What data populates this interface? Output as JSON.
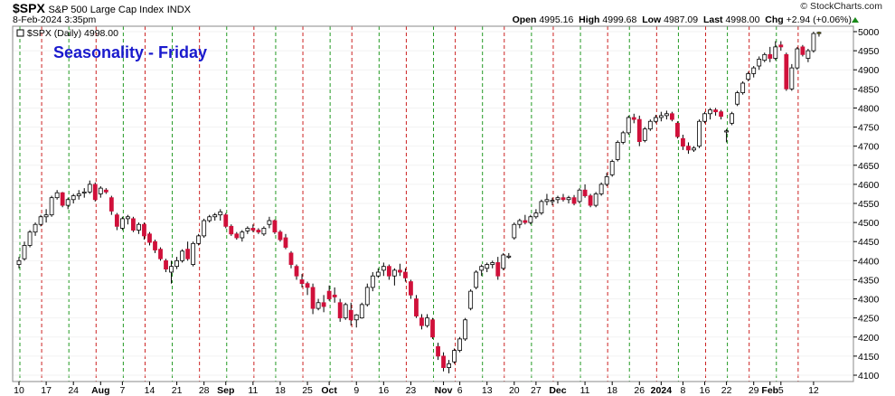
{
  "header": {
    "symbol": "$SPX",
    "name": "S&P 500 Large Cap Index",
    "exchange": "INDX",
    "timestamp": "8-Feb-2024 3:35pm",
    "brand": "© StockCharts.com",
    "open_label": "Open",
    "open": "4995.16",
    "high_label": "High",
    "high": "4999.68",
    "low_label": "Low",
    "low": "4987.09",
    "last_label": "Last",
    "last": "4998.00",
    "chg_label": "Chg",
    "chg": "+2.94 (+0.06%)"
  },
  "legend_text": "$SPX (Daily) 4998.00",
  "chart_title": "Seasonality - Friday",
  "colors": {
    "up": "#ffffff",
    "down": "#d0103a",
    "wick": "#000000",
    "vline_red": "#cc2222",
    "vline_green": "#229922",
    "title": "#1a1acd",
    "last_marker": "#ffff00"
  },
  "chart_data": {
    "type": "candlestick",
    "title": "Seasonality - Friday",
    "y_ticks": [
      4100,
      4150,
      4200,
      4250,
      4300,
      4350,
      4400,
      4450,
      4500,
      4550,
      4600,
      4650,
      4700,
      4750,
      4800,
      4850,
      4900,
      4950,
      5000
    ],
    "ylim": [
      4090,
      5005
    ],
    "x_labels": [
      {
        "i": 0,
        "text": "10"
      },
      {
        "i": 5,
        "text": "17"
      },
      {
        "i": 10,
        "text": "24"
      },
      {
        "i": 15,
        "text": "Aug",
        "bold": true
      },
      {
        "i": 19,
        "text": "7"
      },
      {
        "i": 24,
        "text": "14"
      },
      {
        "i": 29,
        "text": "21"
      },
      {
        "i": 34,
        "text": "28"
      },
      {
        "i": 38,
        "text": "Sep",
        "bold": true
      },
      {
        "i": 43,
        "text": "11"
      },
      {
        "i": 48,
        "text": "18"
      },
      {
        "i": 53,
        "text": "25"
      },
      {
        "i": 57,
        "text": "Oct",
        "bold": true
      },
      {
        "i": 62,
        "text": "9"
      },
      {
        "i": 67,
        "text": "16"
      },
      {
        "i": 72,
        "text": "23"
      },
      {
        "i": 78,
        "text": "Nov",
        "bold": true
      },
      {
        "i": 81,
        "text": "6"
      },
      {
        "i": 86,
        "text": "13"
      },
      {
        "i": 91,
        "text": "20"
      },
      {
        "i": 95,
        "text": "27"
      },
      {
        "i": 99,
        "text": "Dec",
        "bold": true
      },
      {
        "i": 104,
        "text": "11"
      },
      {
        "i": 109,
        "text": "18"
      },
      {
        "i": 114,
        "text": "26"
      },
      {
        "i": 118,
        "text": "2024",
        "bold": true
      },
      {
        "i": 122,
        "text": "8"
      },
      {
        "i": 126,
        "text": "16"
      },
      {
        "i": 130,
        "text": "22"
      },
      {
        "i": 135,
        "text": "29"
      },
      {
        "i": 138,
        "text": "Feb",
        "bold": true
      },
      {
        "i": 140,
        "text": "5"
      },
      {
        "i": 146,
        "text": "12"
      }
    ],
    "x_slots": 147,
    "vlines": [
      {
        "i": 0,
        "c": "g"
      },
      {
        "i": 4,
        "c": "r"
      },
      {
        "i": 9,
        "c": "g"
      },
      {
        "i": 14,
        "c": "r"
      },
      {
        "i": 19,
        "c": "g"
      },
      {
        "i": 23,
        "c": "r"
      },
      {
        "i": 28,
        "c": "g"
      },
      {
        "i": 33,
        "c": "r"
      },
      {
        "i": 38,
        "c": "g"
      },
      {
        "i": 43,
        "c": "r"
      },
      {
        "i": 47,
        "c": "g"
      },
      {
        "i": 52,
        "c": "r"
      },
      {
        "i": 57,
        "c": "g"
      },
      {
        "i": 61,
        "c": "r"
      },
      {
        "i": 66,
        "c": "g"
      },
      {
        "i": 71,
        "c": "r"
      },
      {
        "i": 76,
        "c": "g"
      },
      {
        "i": 80,
        "c": "r"
      },
      {
        "i": 85,
        "c": "g"
      },
      {
        "i": 89,
        "c": "r"
      },
      {
        "i": 94,
        "c": "g"
      },
      {
        "i": 98,
        "c": "r"
      },
      {
        "i": 103,
        "c": "g"
      },
      {
        "i": 108,
        "c": "r"
      },
      {
        "i": 112,
        "c": "g"
      },
      {
        "i": 117,
        "c": "r"
      },
      {
        "i": 121,
        "c": "g"
      },
      {
        "i": 126,
        "c": "r"
      },
      {
        "i": 130,
        "c": "g"
      },
      {
        "i": 134,
        "c": "r"
      },
      {
        "i": 139,
        "c": "g"
      },
      {
        "i": 143,
        "c": "r"
      }
    ],
    "candles": [
      [
        4390,
        4410,
        4380,
        4400
      ],
      [
        4405,
        4450,
        4400,
        4440
      ],
      [
        4440,
        4480,
        4435,
        4475
      ],
      [
        4475,
        4500,
        4465,
        4495
      ],
      [
        4495,
        4520,
        4490,
        4515
      ],
      [
        4515,
        4535,
        4500,
        4520
      ],
      [
        4520,
        4570,
        4515,
        4565
      ],
      [
        4565,
        4585,
        4560,
        4578
      ],
      [
        4578,
        4580,
        4540,
        4545
      ],
      [
        4545,
        4565,
        4535,
        4560
      ],
      [
        4560,
        4575,
        4550,
        4570
      ],
      [
        4570,
        4585,
        4560,
        4575
      ],
      [
        4578,
        4590,
        4565,
        4580
      ],
      [
        4580,
        4610,
        4575,
        4600
      ],
      [
        4600,
        4605,
        4555,
        4560
      ],
      [
        4575,
        4595,
        4565,
        4590
      ],
      [
        4585,
        4590,
        4575,
        4580
      ],
      [
        4565,
        4570,
        4520,
        4530
      ],
      [
        4520,
        4525,
        4480,
        4490
      ],
      [
        4485,
        4515,
        4480,
        4510
      ],
      [
        4510,
        4520,
        4495,
        4515
      ],
      [
        4510,
        4515,
        4475,
        4480
      ],
      [
        4480,
        4500,
        4470,
        4495
      ],
      [
        4495,
        4500,
        4455,
        4465
      ],
      [
        4470,
        4475,
        4440,
        4448
      ],
      [
        4450,
        4455,
        4420,
        4428
      ],
      [
        4430,
        4435,
        4400,
        4405
      ],
      [
        4400,
        4405,
        4370,
        4378
      ],
      [
        4370,
        4400,
        4340,
        4385
      ],
      [
        4385,
        4410,
        4378,
        4400
      ],
      [
        4400,
        4430,
        4395,
        4425
      ],
      [
        4430,
        4450,
        4400,
        4405
      ],
      [
        4390,
        4450,
        4385,
        4445
      ],
      [
        4445,
        4470,
        4440,
        4465
      ],
      [
        4465,
        4510,
        4460,
        4505
      ],
      [
        4505,
        4520,
        4500,
        4515
      ],
      [
        4515,
        4525,
        4505,
        4520
      ],
      [
        4520,
        4535,
        4505,
        4528
      ],
      [
        4520,
        4525,
        4485,
        4490
      ],
      [
        4490,
        4495,
        4465,
        4470
      ],
      [
        4470,
        4475,
        4455,
        4460
      ],
      [
        4460,
        4480,
        4450,
        4475
      ],
      [
        4478,
        4490,
        4470,
        4485
      ],
      [
        4485,
        4495,
        4475,
        4480
      ],
      [
        4480,
        4485,
        4470,
        4475
      ],
      [
        4470,
        4490,
        4465,
        4485
      ],
      [
        4495,
        4515,
        4485,
        4505
      ],
      [
        4505,
        4508,
        4470,
        4475
      ],
      [
        4475,
        4480,
        4450,
        4455
      ],
      [
        4460,
        4470,
        4430,
        4435
      ],
      [
        4420,
        4425,
        4380,
        4390
      ],
      [
        4385,
        4390,
        4350,
        4360
      ],
      [
        4350,
        4365,
        4330,
        4340
      ],
      [
        4340,
        4345,
        4310,
        4330
      ],
      [
        4330,
        4340,
        4260,
        4275
      ],
      [
        4275,
        4300,
        4270,
        4290
      ],
      [
        4290,
        4310,
        4265,
        4280
      ],
      [
        4320,
        4335,
        4295,
        4300
      ],
      [
        4310,
        4330,
        4290,
        4305
      ],
      [
        4290,
        4300,
        4240,
        4250
      ],
      [
        4250,
        4290,
        4245,
        4285
      ],
      [
        4270,
        4290,
        4230,
        4245
      ],
      [
        4245,
        4260,
        4225,
        4258
      ],
      [
        4250,
        4290,
        4248,
        4285
      ],
      [
        4285,
        4340,
        4280,
        4330
      ],
      [
        4330,
        4370,
        4320,
        4360
      ],
      [
        4360,
        4380,
        4355,
        4370
      ],
      [
        4375,
        4395,
        4360,
        4385
      ],
      [
        4385,
        4390,
        4350,
        4360
      ],
      [
        4360,
        4380,
        4335,
        4375
      ],
      [
        4375,
        4392,
        4360,
        4370
      ],
      [
        4370,
        4380,
        4345,
        4355
      ],
      [
        4345,
        4350,
        4300,
        4310
      ],
      [
        4300,
        4310,
        4250,
        4255
      ],
      [
        4250,
        4260,
        4220,
        4230
      ],
      [
        4230,
        4260,
        4225,
        4250
      ],
      [
        4245,
        4250,
        4195,
        4200
      ],
      [
        4175,
        4185,
        4140,
        4150
      ],
      [
        4150,
        4160,
        4110,
        4120
      ],
      [
        4120,
        4140,
        4105,
        4130
      ],
      [
        4135,
        4170,
        4130,
        4165
      ],
      [
        4165,
        4200,
        4160,
        4195
      ],
      [
        4195,
        4250,
        4190,
        4245
      ],
      [
        4275,
        4325,
        4270,
        4320
      ],
      [
        4330,
        4375,
        4325,
        4370
      ],
      [
        4375,
        4390,
        4360,
        4385
      ],
      [
        4380,
        4395,
        4370,
        4390
      ],
      [
        4390,
        4400,
        4380,
        4395
      ],
      [
        4395,
        4410,
        4350,
        4360
      ],
      [
        4380,
        4420,
        4375,
        4415
      ],
      [
        4410,
        4420,
        4405,
        4412
      ],
      [
        4460,
        4500,
        4455,
        4495
      ],
      [
        4495,
        4510,
        4485,
        4505
      ],
      [
        4505,
        4520,
        4495,
        4500
      ],
      [
        4500,
        4520,
        4495,
        4515
      ],
      [
        4515,
        4535,
        4510,
        4525
      ],
      [
        4525,
        4560,
        4520,
        4555
      ],
      [
        4555,
        4575,
        4545,
        4560
      ],
      [
        4555,
        4565,
        4545,
        4558
      ],
      [
        4560,
        4570,
        4550,
        4565
      ],
      [
        4565,
        4575,
        4555,
        4560
      ],
      [
        4560,
        4570,
        4550,
        4565
      ],
      [
        4565,
        4572,
        4545,
        4550
      ],
      [
        4555,
        4590,
        4550,
        4585
      ],
      [
        4585,
        4600,
        4565,
        4570
      ],
      [
        4570,
        4575,
        4540,
        4545
      ],
      [
        4545,
        4580,
        4540,
        4575
      ],
      [
        4575,
        4605,
        4570,
        4600
      ],
      [
        4600,
        4630,
        4595,
        4620
      ],
      [
        4625,
        4665,
        4620,
        4660
      ],
      [
        4665,
        4715,
        4660,
        4710
      ],
      [
        4710,
        4740,
        4705,
        4735
      ],
      [
        4735,
        4780,
        4730,
        4775
      ],
      [
        4775,
        4785,
        4760,
        4770
      ],
      [
        4770,
        4780,
        4700,
        4712
      ],
      [
        4715,
        4750,
        4710,
        4745
      ],
      [
        4745,
        4770,
        4740,
        4765
      ],
      [
        4765,
        4782,
        4760,
        4775
      ],
      [
        4775,
        4790,
        4765,
        4780
      ],
      [
        4780,
        4793,
        4770,
        4785
      ],
      [
        4785,
        4790,
        4765,
        4770
      ],
      [
        4760,
        4765,
        4720,
        4725
      ],
      [
        4720,
        4730,
        4690,
        4700
      ],
      [
        4700,
        4710,
        4680,
        4690
      ],
      [
        4690,
        4700,
        4685,
        4695
      ],
      [
        4700,
        4770,
        4695,
        4765
      ],
      [
        4765,
        4790,
        4760,
        4785
      ],
      [
        4785,
        4800,
        4770,
        4795
      ],
      [
        4795,
        4800,
        4780,
        4790
      ],
      [
        4790,
        4795,
        4770,
        4778
      ],
      [
        4740,
        4745,
        4710,
        4740
      ],
      [
        4760,
        4790,
        4755,
        4785
      ],
      [
        4810,
        4845,
        4805,
        4840
      ],
      [
        4840,
        4870,
        4835,
        4865
      ],
      [
        4875,
        4895,
        4870,
        4890
      ],
      [
        4890,
        4910,
        4880,
        4905
      ],
      [
        4910,
        4935,
        4900,
        4928
      ],
      [
        4925,
        4945,
        4920,
        4940
      ],
      [
        4940,
        4960,
        4920,
        4930
      ],
      [
        4930,
        4975,
        4925,
        4960
      ],
      [
        4965,
        4975,
        4950,
        4960
      ],
      [
        4940,
        4945,
        4845,
        4850
      ],
      [
        4850,
        4915,
        4845,
        4905
      ],
      [
        4905,
        4960,
        4900,
        4955
      ],
      [
        4960,
        4965,
        4935,
        4940
      ],
      [
        4930,
        4955,
        4920,
        4950
      ],
      [
        4950,
        5000,
        4945,
        4995
      ],
      [
        4995,
        5000,
        4987,
        4998
      ]
    ]
  }
}
